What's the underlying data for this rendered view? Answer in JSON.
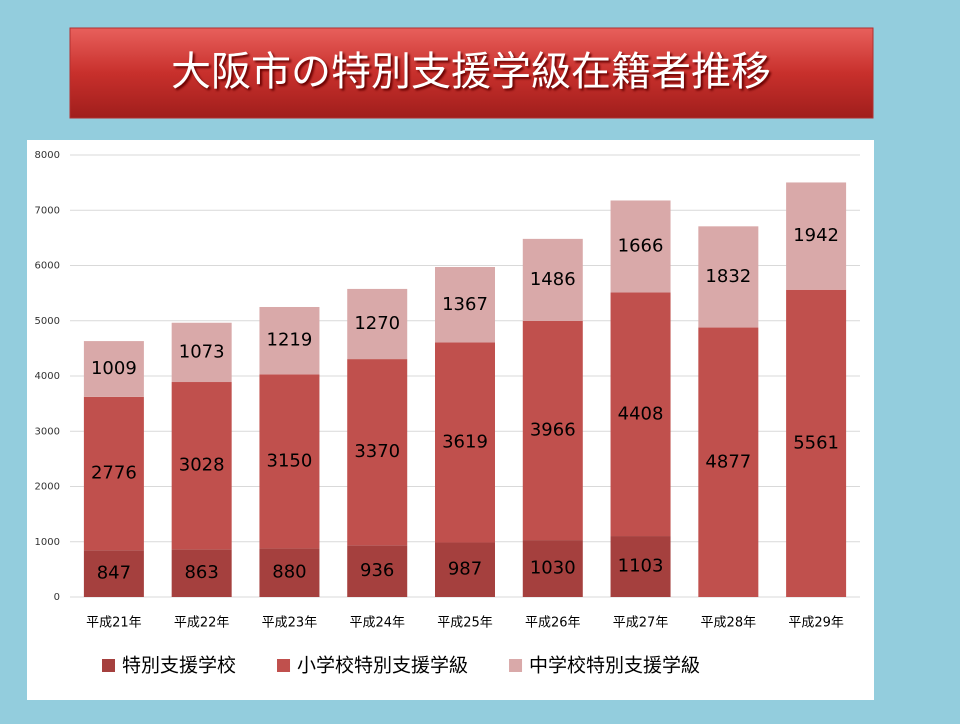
{
  "chart_data": {
    "type": "stacked_bar",
    "title": "大阪市の特別支援学級在籍者推移",
    "categories": [
      "平成21年",
      "平成22年",
      "平成23年",
      "平成24年",
      "平成25年",
      "平成26年",
      "平成27年",
      "平成28年",
      "平成29年"
    ],
    "series": [
      {
        "name": "特別支援学校",
        "color": "#a5403e",
        "values": [
          847,
          863,
          880,
          936,
          987,
          1030,
          1103,
          null,
          null
        ]
      },
      {
        "name": "小学校特別支援学級",
        "color": "#c0504d",
        "values": [
          2776,
          3028,
          3150,
          3370,
          3619,
          3966,
          4408,
          4877,
          5561
        ]
      },
      {
        "name": "中学校特別支援学級",
        "color": "#d9a9a9",
        "values": [
          1009,
          1073,
          1219,
          1270,
          1367,
          1486,
          1666,
          1832,
          1942
        ]
      }
    ],
    "ylim": [
      0,
      8000
    ],
    "yticks": [
      0,
      1000,
      2000,
      3000,
      4000,
      5000,
      6000,
      7000,
      8000
    ],
    "grid": true,
    "legend": "bottom"
  }
}
